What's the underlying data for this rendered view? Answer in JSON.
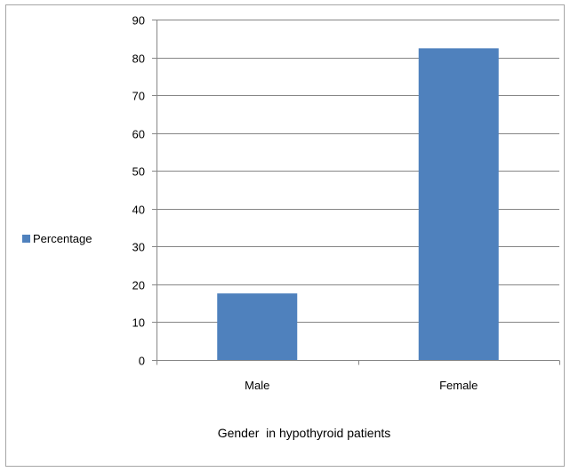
{
  "chart_data": {
    "type": "bar",
    "categories": [
      "Male",
      "Female"
    ],
    "series": [
      {
        "name": "Percentage",
        "values": [
          17.6,
          82.4
        ],
        "color": "#4f81bd"
      }
    ],
    "title": "",
    "xlabel": "Gender  in hypothyroid patients",
    "ylabel": "",
    "ylim": [
      0,
      90
    ],
    "yticks": [
      0,
      10,
      20,
      30,
      40,
      50,
      60,
      70,
      80,
      90
    ],
    "grid": true,
    "legend_position": "left"
  },
  "colors": {
    "bar": "#4f81bd",
    "gridline": "#868686",
    "axis": "#868686",
    "frame_border": "#a6a6a6"
  }
}
